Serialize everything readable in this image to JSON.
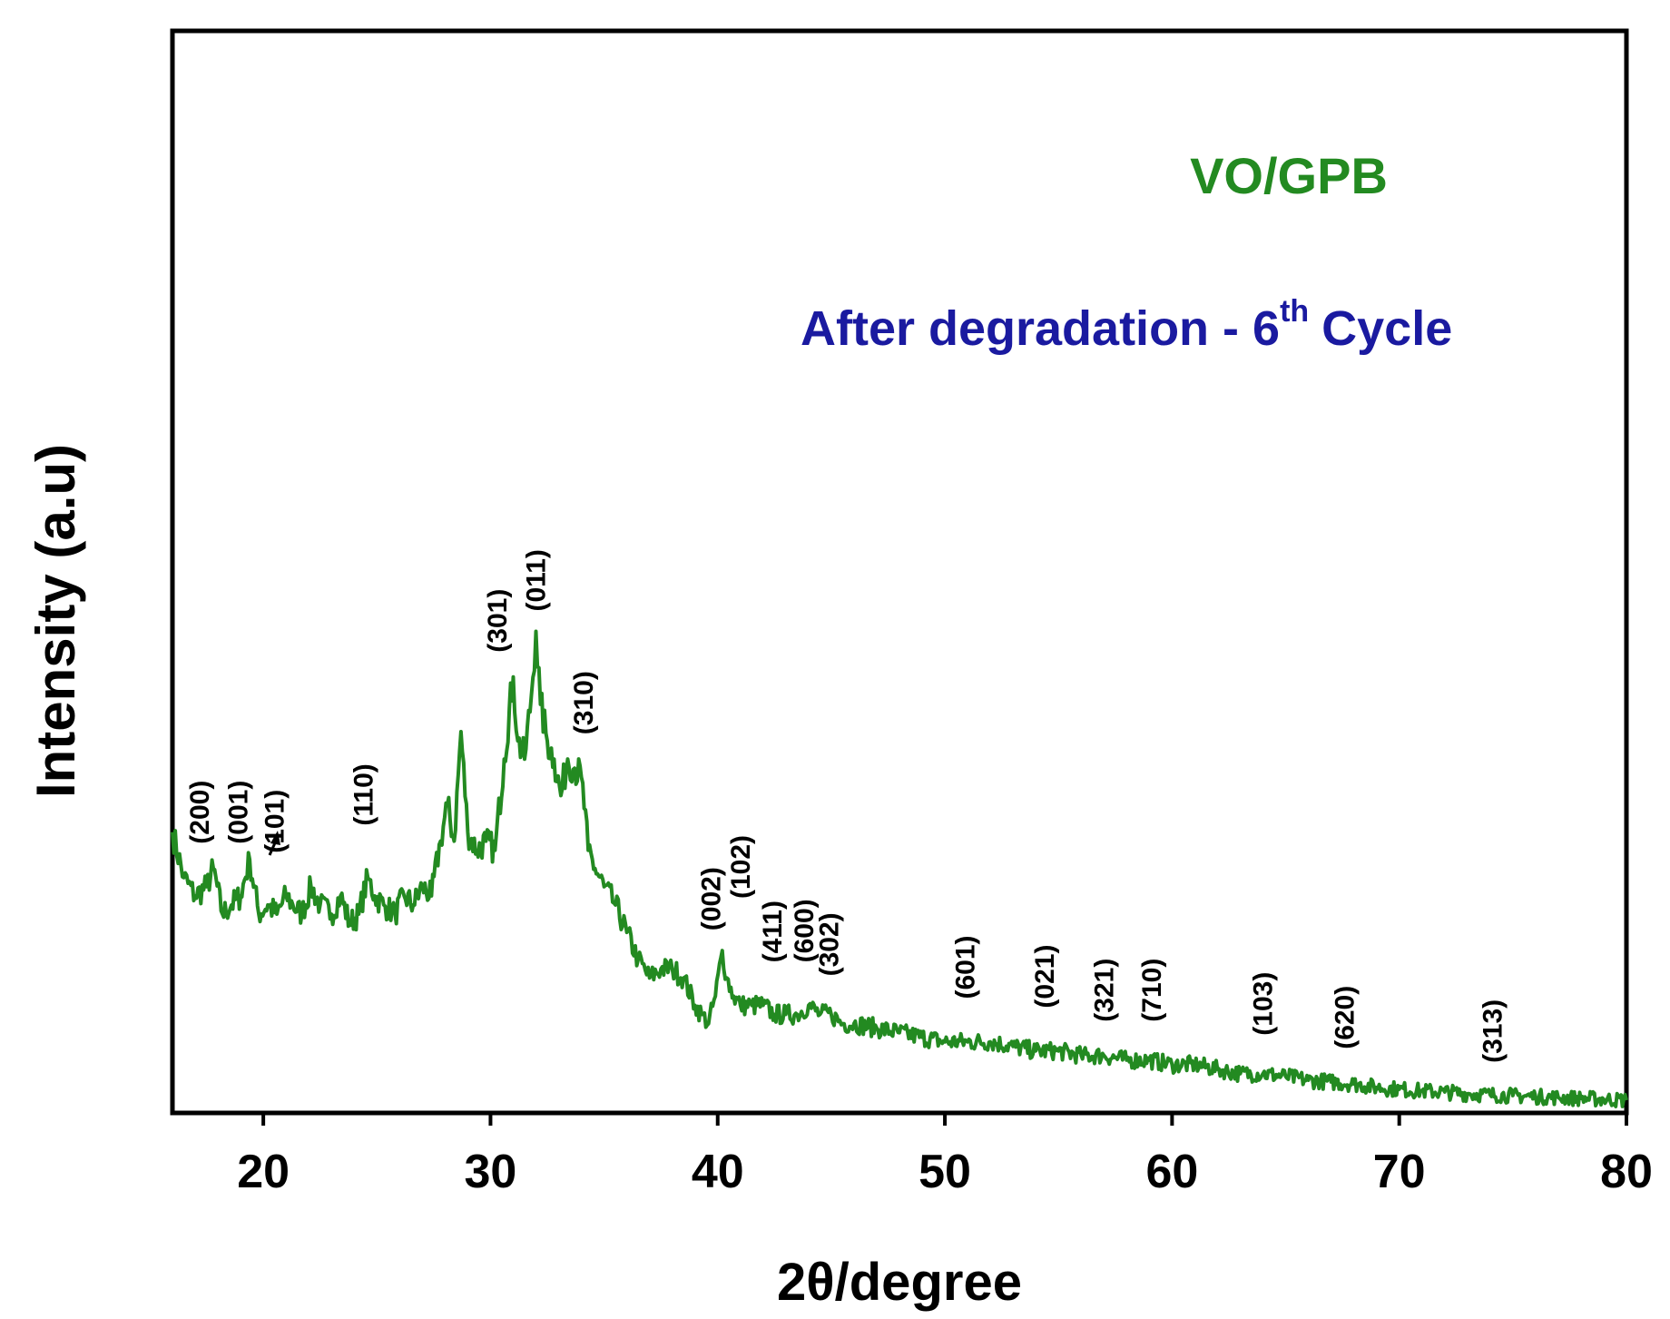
{
  "chart_data": {
    "type": "line",
    "title": "",
    "xlabel": "2θ/degree",
    "ylabel": "Intensity (a.u)",
    "xlim": [
      16,
      80
    ],
    "ylim": [
      0,
      100
    ],
    "y_ticks_shown": false,
    "grid": false,
    "x_ticks": [
      20,
      30,
      40,
      50,
      60,
      70,
      80
    ],
    "x_tick_labels": [
      "20",
      "30",
      "40",
      "50",
      "60",
      "70",
      "80"
    ],
    "colors": {
      "series": "#238a21",
      "annotation_sample": "#238a21",
      "annotation_condition": "#1a1aa0",
      "axes": "#000000"
    },
    "annotations": {
      "sample": "VO/GPB",
      "condition_prefix": "After degradation - 6",
      "condition_superscript": "th",
      "condition_suffix": "Cycle"
    },
    "peak_labels": [
      {
        "label": "(200)",
        "x": 17.6,
        "y": 26.5
      },
      {
        "label": "(001)",
        "x": 19.3,
        "y": 26.5
      },
      {
        "label": "(101)",
        "x": 20.9,
        "y": 25.5
      },
      {
        "label": "(110)",
        "x": 24.8,
        "y": 28.5
      },
      {
        "label": "(301)",
        "x": 30.7,
        "y": 47.5
      },
      {
        "label": "(011)",
        "x": 32.4,
        "y": 52.0
      },
      {
        "label": "(310)",
        "x": 34.5,
        "y": 38.5
      },
      {
        "label": "(002)",
        "x": 40.1,
        "y": 17.0
      },
      {
        "label": "(102)",
        "x": 41.4,
        "y": 20.5
      },
      {
        "label": "(411)",
        "x": 42.8,
        "y": 13.5
      },
      {
        "label": "(600)",
        "x": 44.2,
        "y": 13.5
      },
      {
        "label": "(302)",
        "x": 45.3,
        "y": 12.0
      },
      {
        "label": "(601)",
        "x": 51.3,
        "y": 9.5
      },
      {
        "label": "(021)",
        "x": 54.8,
        "y": 8.5
      },
      {
        "label": "(321)",
        "x": 57.4,
        "y": 7.0
      },
      {
        "label": "(710)",
        "x": 59.5,
        "y": 7.0
      },
      {
        "label": "(103)",
        "x": 64.4,
        "y": 5.5
      },
      {
        "label": "(620)",
        "x": 68.0,
        "y": 4.0
      },
      {
        "label": "(313)",
        "x": 74.5,
        "y": 2.5
      }
    ],
    "series": [
      {
        "color": "#238a21",
        "x": [
          16.0,
          16.5,
          17.0,
          17.5,
          17.8,
          18.2,
          18.6,
          19.0,
          19.4,
          19.8,
          20.2,
          20.6,
          21.0,
          21.3,
          21.7,
          22.1,
          22.5,
          23.0,
          23.4,
          23.8,
          24.2,
          24.6,
          24.9,
          25.3,
          25.8,
          26.2,
          26.6,
          27.0,
          27.4,
          27.8,
          28.1,
          28.4,
          28.7,
          29.0,
          29.4,
          29.8,
          30.2,
          30.6,
          31.0,
          31.2,
          31.5,
          31.8,
          32.0,
          32.2,
          32.5,
          32.8,
          33.1,
          33.4,
          33.7,
          34.0,
          34.3,
          34.6,
          35.0,
          35.5,
          36.0,
          36.5,
          37.0,
          37.5,
          38.0,
          38.5,
          39.0,
          39.3,
          39.6,
          39.9,
          40.2,
          40.4,
          40.7,
          41.0,
          41.5,
          42.0,
          42.5,
          43.0,
          43.5,
          44.0,
          44.5,
          45.0,
          45.5,
          46.0,
          47.0,
          48.0,
          49.0,
          50.0,
          51.0,
          52.0,
          53.0,
          54.0,
          55.0,
          56.0,
          57.0,
          58.0,
          59.0,
          60.0,
          61.0,
          62.0,
          63.0,
          64.0,
          65.0,
          66.0,
          67.0,
          68.0,
          69.0,
          70.0,
          71.0,
          72.0,
          73.0,
          74.0,
          75.0,
          76.0,
          77.0,
          78.0,
          79.0,
          80.0
        ],
        "values": [
          30,
          25,
          23,
          24,
          26,
          21,
          22,
          23,
          27,
          21,
          22,
          21,
          23,
          22,
          21,
          24,
          22,
          21,
          23,
          20,
          21,
          25,
          23,
          22,
          21,
          23,
          22,
          24,
          23,
          29,
          33,
          29,
          41,
          30,
          28,
          29,
          28,
          38,
          47,
          40,
          38,
          45,
          52,
          44,
          40,
          38,
          34,
          38,
          37,
          36,
          28,
          26,
          24,
          22,
          19,
          16,
          14,
          15,
          15,
          14,
          11,
          10,
          9,
          12,
          17,
          14,
          12,
          11,
          11,
          11,
          10,
          10,
          10,
          11,
          10,
          10,
          9,
          9,
          8.5,
          8,
          7.5,
          7,
          7,
          7,
          6.5,
          6,
          6,
          5.5,
          5.5,
          5,
          5,
          4.5,
          4.5,
          4,
          3.5,
          3.5,
          3.2,
          2.8,
          2.6,
          2.4,
          2,
          1.8,
          1.6,
          1.5,
          1.3,
          1.2,
          1.1,
          1,
          0.9,
          0.8,
          0.7,
          0.6
        ]
      }
    ]
  }
}
